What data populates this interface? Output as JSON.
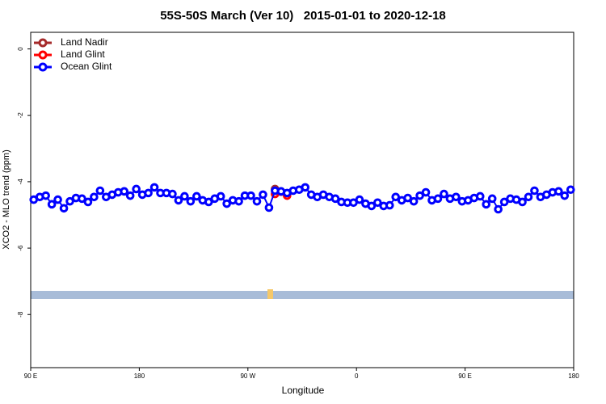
{
  "chart_data": {
    "type": "line",
    "title": "55S-50S March (Ver 10)   2015-01-01 to 2020-12-18",
    "xlabel": "Longitude",
    "ylabel": "XCO2 - MLO trend (ppm)",
    "xlim": [
      90,
      540
    ],
    "ylim": [
      -9.6,
      0.5
    ],
    "xticks": [
      {
        "value": 90,
        "label": "90 E"
      },
      180,
      {
        "value": 270,
        "label": "90 W"
      },
      {
        "value": 360,
        "label": "0"
      },
      {
        "value": 450,
        "label": "90 E"
      },
      {
        "value": 540,
        "label": "180"
      }
    ],
    "yticks": [
      0,
      -2,
      -4,
      -6,
      -8
    ],
    "legend": "topleft",
    "series": [
      {
        "name": "Land Nadir",
        "color": "#a52a2a",
        "x": [
          292.5,
          297.5
        ],
        "values": [
          -4.22,
          -4.3
        ]
      },
      {
        "name": "Land Glint",
        "color": "#ff0000",
        "x": [
          292.5,
          297.5,
          302.5
        ],
        "values": [
          -4.37,
          -4.3,
          -4.42
        ]
      },
      {
        "name": "Ocean Glint",
        "color": "#0000ff",
        "x": [
          92.5,
          97.5,
          102.5,
          107.5,
          112.5,
          117.5,
          122.5,
          127.5,
          132.5,
          137.5,
          142.5,
          147.5,
          152.5,
          157.5,
          162.5,
          167.5,
          172.5,
          177.5,
          182.5,
          187.5,
          192.5,
          197.5,
          202.5,
          207.5,
          212.5,
          217.5,
          222.5,
          227.5,
          232.5,
          237.5,
          242.5,
          247.5,
          252.5,
          257.5,
          262.5,
          267.5,
          272.5,
          277.5,
          282.5,
          287.5,
          292.5,
          297.5,
          302.5,
          307.5,
          312.5,
          317.5,
          322.5,
          327.5,
          332.5,
          337.5,
          342.5,
          347.5,
          352.5,
          357.5,
          362.5,
          367.5,
          372.5,
          377.5,
          382.5,
          387.5,
          392.5,
          397.5,
          402.5,
          407.5,
          412.5,
          417.5,
          422.5,
          427.5,
          432.5,
          437.5,
          442.5,
          447.5,
          452.5,
          457.5,
          462.5,
          467.5,
          472.5,
          477.5,
          482.5,
          487.5,
          492.5,
          497.5,
          502.5,
          507.5,
          512.5,
          517.5,
          522.5,
          527.5,
          532.5,
          537.5
        ],
        "values": [
          -4.54,
          -4.46,
          -4.42,
          -4.68,
          -4.54,
          -4.8,
          -4.59,
          -4.49,
          -4.51,
          -4.61,
          -4.46,
          -4.27,
          -4.46,
          -4.39,
          -4.32,
          -4.29,
          -4.42,
          -4.22,
          -4.39,
          -4.34,
          -4.17,
          -4.34,
          -4.34,
          -4.37,
          -4.56,
          -4.44,
          -4.59,
          -4.44,
          -4.56,
          -4.61,
          -4.51,
          -4.44,
          -4.66,
          -4.56,
          -4.59,
          -4.42,
          -4.42,
          -4.59,
          -4.39,
          -4.78,
          -4.27,
          -4.29,
          -4.34,
          -4.27,
          -4.24,
          -4.17,
          -4.39,
          -4.46,
          -4.39,
          -4.46,
          -4.51,
          -4.61,
          -4.63,
          -4.63,
          -4.54,
          -4.66,
          -4.73,
          -4.63,
          -4.73,
          -4.71,
          -4.46,
          -4.56,
          -4.49,
          -4.59,
          -4.42,
          -4.32,
          -4.56,
          -4.51,
          -4.37,
          -4.51,
          -4.46,
          -4.59,
          -4.56,
          -4.49,
          -4.44,
          -4.68,
          -4.51,
          -4.83,
          -4.61,
          -4.51,
          -4.54,
          -4.61,
          -4.46,
          -4.27,
          -4.46,
          -4.39,
          -4.32,
          -4.29,
          -4.42,
          -4.24
        ]
      }
    ]
  }
}
